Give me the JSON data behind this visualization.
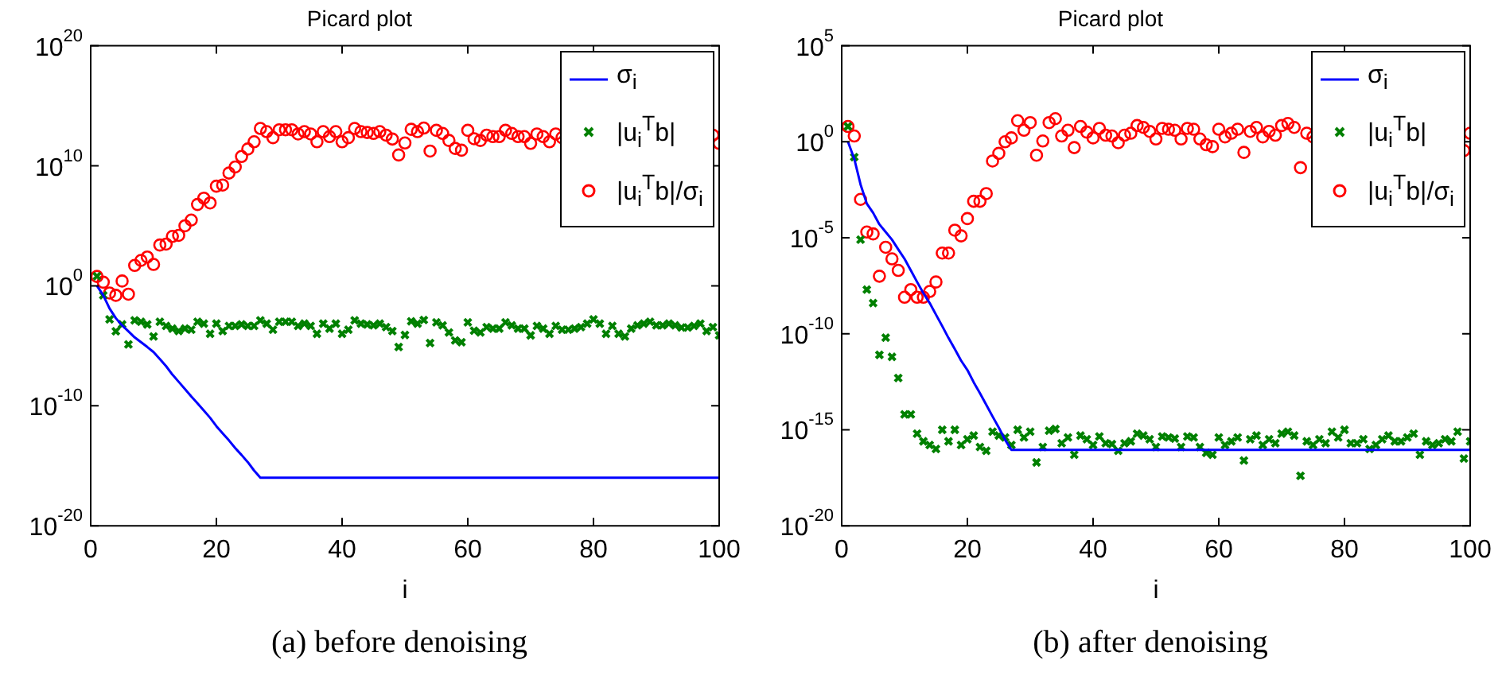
{
  "chart_data": [
    {
      "type": "line",
      "title": "Picard plot",
      "xlabel": "i",
      "annotations": [
        "(a) before denoising"
      ],
      "log": "y",
      "legend": "top right",
      "xlim": [
        0,
        100
      ],
      "xticks": [
        0,
        20,
        40,
        60,
        80,
        100
      ],
      "ylim": [
        1e-20,
        1e+20
      ],
      "yticks": [
        {
          "value": 1e-20,
          "label": "10$^{-20}$"
        },
        {
          "value": 1e-10,
          "label": "10$^{-10}$"
        },
        {
          "value": 1,
          "label": "10$^{0}$"
        },
        {
          "value": 10000000000.0,
          "label": "10$^{10}$"
        },
        {
          "value": 1e+20,
          "label": "10$^{20}$"
        }
      ],
      "x": [
        1,
        2,
        3,
        4,
        5,
        6,
        7,
        8,
        9,
        10,
        11,
        12,
        13,
        14,
        15,
        16,
        17,
        18,
        19,
        20,
        21,
        22,
        23,
        24,
        25,
        26,
        27,
        28,
        29,
        30,
        31,
        32,
        33,
        34,
        35,
        36,
        37,
        38,
        39,
        40,
        41,
        42,
        43,
        44,
        45,
        46,
        47,
        48,
        49,
        50,
        51,
        52,
        53,
        54,
        55,
        56,
        57,
        58,
        59,
        60,
        61,
        62,
        63,
        64,
        65,
        66,
        67,
        68,
        69,
        70,
        71,
        72,
        73,
        74,
        75,
        76,
        77,
        78,
        79,
        80,
        81,
        82,
        83,
        84,
        85,
        86,
        87,
        88,
        89,
        90,
        91,
        92,
        93,
        94,
        95,
        96,
        97,
        98,
        99,
        100
      ],
      "series": [
        {
          "name": "σ$_{i}$",
          "marker": "none",
          "color": "#0000ff",
          "x": [
            1,
            2,
            3,
            4,
            5,
            6,
            7,
            8,
            9,
            10,
            11,
            12,
            13,
            14,
            15,
            16,
            17,
            18,
            19,
            20,
            21,
            22,
            23,
            24,
            25,
            26,
            27,
            100
          ],
          "values": [
            1,
            0.16,
            0.013,
            0.002,
            0.0005,
            0.00016,
            5e-05,
            2e-05,
            8e-06,
            3e-06,
            8e-07,
            2e-07,
            4e-08,
            1e-08,
            2.5e-09,
            6e-10,
            1.6e-10,
            4e-11,
            1e-11,
            2e-12,
            5e-13,
            1.3e-13,
            3e-14,
            8e-15,
            2e-15,
            4e-16,
            1e-16,
            1e-16
          ]
        },
        {
          "name": "|u$_{i}$$^{T}$b|",
          "type": "scatter",
          "marker": "cross",
          "color": "#008000",
          "values": [
            6.3,
            0.16,
            0.0016,
            0.00016,
            0.0006,
            1.3e-05,
            0.0013,
            0.001,
            0.0006,
            6e-05,
            0.001,
            0.00045,
            0.00027,
            0.00017,
            0.00027,
            0.00022,
            0.001,
            0.0007,
            0.0001,
            0.0007,
            0.00017,
            0.00045,
            0.00045,
            0.0006,
            0.00045,
            0.00045,
            0.0013,
            0.0007,
            0.00022,
            0.001,
            0.001,
            0.001,
            0.00045,
            0.0007,
            0.00045,
            0.0001,
            0.0007,
            0.00027,
            0.0007,
            0.0001,
            0.00022,
            0.0013,
            0.0007,
            0.0006,
            0.0005,
            0.0007,
            0.00036,
            0.00017,
            8e-06,
            8e-05,
            0.0011,
            0.0007,
            0.0014,
            1.7e-05,
            0.0009,
            0.0005,
            0.00013,
            2.8e-05,
            2e-05,
            0.0009,
            0.00018,
            0.00013,
            0.00036,
            0.00027,
            0.00027,
            0.0009,
            0.0005,
            0.00027,
            0.00027,
            7.4e-05,
            0.00045,
            0.00027,
            0.0001,
            0.00045,
            0.00022,
            0.00022,
            0.00027,
            0.00036,
            0.0007,
            0.0016,
            0.0007,
            0.0001,
            0.00045,
            0.0001,
            6e-05,
            0.00027,
            0.0005,
            0.0007,
            0.001,
            0.0005,
            0.0005,
            0.0007,
            0.0005,
            0.00033,
            0.00033,
            0.00045,
            0.0007,
            0.00017,
            0.00036,
            7.4e-05
          ]
        },
        {
          "name": "|u$_{i}$$^{T}$b|/σ$_{i}$",
          "type": "scatter",
          "marker": "circle",
          "color": "#ff0000",
          "values": [
            6,
            2,
            0.25,
            0.16,
            2.5,
            0.2,
            50,
            130,
            250,
            60,
            2500.0,
            3000.0,
            13000.0,
            16000.0,
            100000.0,
            300000.0,
            6000000.0,
            20000000.0,
            8000000.0,
            200000000.0,
            250000000.0,
            2500000000.0,
            8000000000.0,
            60000000000.0,
            250000000000.0,
            1000000000000.0,
            13000000000000.0,
            7000000000000.0,
            2200000000000.0,
            10000000000000.0,
            10000000000000.0,
            10000000000000.0,
            4500000000000.0,
            7000000000000.0,
            4500000000000.0,
            1000000000000.0,
            7000000000000.0,
            2700000000000.0,
            7000000000000.0,
            1000000000000.0,
            2200000000000.0,
            13000000000000.0,
            7000000000000.0,
            6000000000000.0,
            5000000000000.0,
            7000000000000.0,
            3600000000000.0,
            1700000000000.0,
            80000000000.0,
            800000000000.0,
            11000000000000.0,
            7000000000000.0,
            14000000000000.0,
            170000000000.0,
            9000000000000.0,
            5000000000000.0,
            1300000000000.0,
            280000000000.0,
            200000000000.0,
            9000000000000.0,
            1800000000000.0,
            1300000000000.0,
            3600000000000.0,
            2700000000000.0,
            2700000000000.0,
            9000000000000.0,
            5000000000000.0,
            2700000000000.0,
            2700000000000.0,
            740000000000.0,
            4500000000000.0,
            2700000000000.0,
            1000000000000.0,
            4500000000000.0,
            2200000000000.0,
            null,
            null,
            null,
            null,
            null,
            null,
            null,
            null,
            null,
            null,
            null,
            null,
            null,
            null,
            null,
            null,
            null,
            null,
            null,
            null,
            null,
            null,
            null,
            3600000000000.0,
            740000000000.0
          ]
        }
      ]
    },
    {
      "type": "line",
      "title": "Picard plot",
      "xlabel": "i",
      "annotations": [
        "(b) after denoising"
      ],
      "log": "y",
      "legend": "top right",
      "xlim": [
        0,
        100
      ],
      "xticks": [
        0,
        20,
        40,
        60,
        80,
        100
      ],
      "ylim": [
        1e-20,
        100000.0
      ],
      "yticks": [
        {
          "value": 1e-20,
          "label": "10$^{-20}$"
        },
        {
          "value": 1e-15,
          "label": "10$^{-15}$"
        },
        {
          "value": 1e-10,
          "label": "10$^{-10}$"
        },
        {
          "value": 1e-05,
          "label": "10$^{-5}$"
        },
        {
          "value": 1,
          "label": "10$^{0}$"
        },
        {
          "value": 100000.0,
          "label": "10$^{5}$"
        }
      ],
      "x": [
        1,
        2,
        3,
        4,
        5,
        6,
        7,
        8,
        9,
        10,
        11,
        12,
        13,
        14,
        15,
        16,
        17,
        18,
        19,
        20,
        21,
        22,
        23,
        24,
        25,
        26,
        27,
        28,
        29,
        30,
        31,
        32,
        33,
        34,
        35,
        36,
        37,
        38,
        39,
        40,
        41,
        42,
        43,
        44,
        45,
        46,
        47,
        48,
        49,
        50,
        51,
        52,
        53,
        54,
        55,
        56,
        57,
        58,
        59,
        60,
        61,
        62,
        63,
        64,
        65,
        66,
        67,
        68,
        69,
        70,
        71,
        72,
        73,
        74,
        75,
        76,
        77,
        78,
        79,
        80,
        81,
        82,
        83,
        84,
        85,
        86,
        87,
        88,
        89,
        90,
        91,
        92,
        93,
        94,
        95,
        96,
        97,
        98,
        99,
        100
      ],
      "series": [
        {
          "name": "σ$_{i}$",
          "marker": "none",
          "color": "#0000ff",
          "x": [
            1,
            2,
            3,
            4,
            5,
            6,
            7,
            8,
            9,
            10,
            11,
            12,
            13,
            14,
            15,
            16,
            17,
            18,
            19,
            20,
            21,
            22,
            23,
            24,
            25,
            26,
            27,
            100
          ],
          "values": [
            1,
            0.13,
            0.006,
            0.0006,
            0.0002,
            5e-05,
            2e-05,
            8e-06,
            2.5e-06,
            8e-07,
            2e-07,
            5e-08,
            1.3e-08,
            4e-09,
            1e-09,
            2.5e-10,
            6e-11,
            1.6e-11,
            4e-12,
            1.3e-12,
            3e-13,
            8e-14,
            2e-14,
            5e-15,
            1.3e-15,
            3e-16,
            9e-17,
            9e-17
          ]
        },
        {
          "name": "|u$_{i}$$^{T}$b|",
          "type": "scatter",
          "marker": "cross",
          "color": "#008000",
          "values": [
            6.3,
            0.16,
            8e-06,
            2e-08,
            4e-09,
            8e-12,
            6.3e-11,
            6.3e-12,
            5e-13,
            6.3e-15,
            6.3e-15,
            6.3e-16,
            2.5e-16,
            1.6e-16,
            1e-16,
            1e-15,
            2.5e-16,
            1e-15,
            1.6e-16,
            3.2e-16,
            5e-16,
            1.26e-16,
            8e-17,
            8e-16,
            5e-16,
            4e-16,
            1.6e-16,
            1e-15,
            4e-16,
            8e-16,
            2e-17,
            1.26e-16,
            9e-16,
            1.1e-15,
            2e-16,
            4e-16,
            5e-17,
            5e-16,
            3.2e-16,
            1.6e-16,
            4.5e-16,
            2e-16,
            1.8e-16,
            8e-17,
            2e-16,
            2.5e-16,
            6.3e-16,
            5e-16,
            3.2e-16,
            1.26e-16,
            4.5e-16,
            4e-16,
            3.5e-16,
            1.26e-16,
            4.5e-16,
            4e-16,
            1.26e-16,
            6.3e-17,
            5e-17,
            4e-16,
            1.6e-16,
            2.5e-16,
            4e-16,
            2.5e-17,
            3.2e-16,
            5e-16,
            1.6e-16,
            3.2e-16,
            2e-16,
            6.3e-16,
            8e-16,
            5e-16,
            4e-18,
            2.5e-16,
            1.6e-16,
            3.2e-16,
            2e-16,
            8e-16,
            4e-16,
            1e-15,
            2e-16,
            2e-16,
            3.2e-16,
            1e-16,
            1.6e-16,
            3.2e-16,
            5e-16,
            2.5e-16,
            2.5e-16,
            4e-16,
            6.3e-16,
            5e-17,
            2.5e-16,
            1.6e-16,
            2e-16,
            3.2e-16,
            2.5e-16,
            8e-16,
            3.2e-17,
            2.5e-16
          ]
        },
        {
          "name": "|u$_{i}$$^{T}$b|/σ$_{i}$",
          "type": "scatter",
          "marker": "circle",
          "color": "#ff0000",
          "values": [
            6.3,
            2,
            0.001,
            2e-05,
            1.6e-05,
            1e-07,
            3.2e-06,
            8e-07,
            2e-07,
            8e-09,
            2e-08,
            8e-09,
            8e-09,
            1.6e-08,
            5e-08,
            1.6e-06,
            1.6e-06,
            2.5e-05,
            1.26e-05,
            0.0001,
            0.0008,
            0.0008,
            0.002,
            0.1,
            0.25,
            1,
            1.6,
            12.6,
            4,
            10,
            0.2,
            1.1,
            10,
            16,
            2,
            4,
            0.5,
            6.3,
            3.2,
            1.6,
            5,
            2.2,
            2,
            0.9,
            2.2,
            2.8,
            7,
            5.6,
            3.5,
            1.4,
            5,
            4.5,
            4,
            1.4,
            5,
            4.5,
            1.4,
            0.7,
            0.56,
            4.5,
            1.8,
            2.8,
            4.5,
            0.28,
            3.5,
            5.6,
            1.8,
            3.5,
            2.2,
            7,
            9,
            5.6,
            0.045,
            2.8,
            1.8,
            null,
            null,
            null,
            null,
            null,
            null,
            null,
            null,
            null,
            null,
            null,
            null,
            null,
            null,
            null,
            null,
            null,
            null,
            null,
            null,
            null,
            null,
            null,
            0.35,
            2.8
          ]
        }
      ]
    }
  ]
}
